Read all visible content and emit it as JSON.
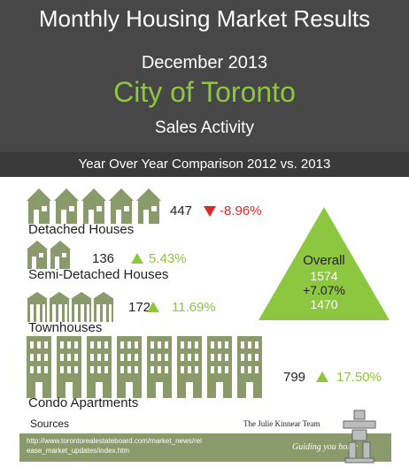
{
  "header": {
    "title": "Monthly Housing Market Results",
    "date": "December 2013",
    "city": "City of Toronto",
    "section": "Sales Activity",
    "comparison": "Year Over Year Comparison 2012 vs. 2013"
  },
  "categories": [
    {
      "label": "Detached Houses",
      "value": "447",
      "change": "-8.96%",
      "direction": "down",
      "icon": "detached-house-icon",
      "icon_count": 5
    },
    {
      "label": "Semi-Detached Houses",
      "value": "136",
      "change": "5.43%",
      "direction": "up",
      "icon": "semi-detached-house-icon",
      "icon_count": 2
    },
    {
      "label": "Townhouses",
      "value": "172",
      "change": "11.69%",
      "direction": "up",
      "icon": "townhouse-icon",
      "icon_count": 2
    },
    {
      "label": "Condo Apartments",
      "value": "799",
      "change": "17.50%",
      "direction": "up",
      "icon": "condo-building-icon",
      "icon_count": 8
    }
  ],
  "overall": {
    "label": "Overall",
    "value_2013": "1574",
    "change": "+7.07%",
    "value_2012": "1470"
  },
  "sources": {
    "label": "Sources",
    "url": "http://www.torontorealestateboard.com/market_news/release_market_updates/index.htm"
  },
  "brand": {
    "name": "The Julie Kinnear Team",
    "tagline": "Guiding you home"
  },
  "colors": {
    "header_bg": "#474747",
    "accent_green": "#8dc63f",
    "decline_red": "#e0282a",
    "icon_olive": "#8a9a6a"
  }
}
